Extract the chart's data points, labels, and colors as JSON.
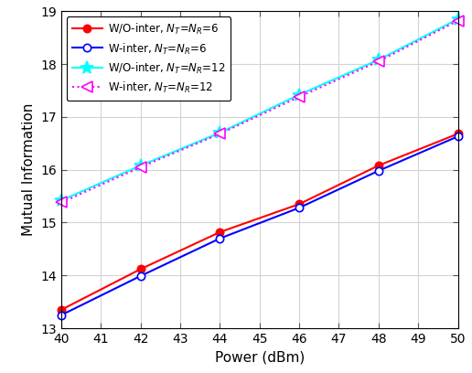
{
  "x": [
    40,
    42,
    44,
    46,
    48,
    50
  ],
  "y_wo_inter_6": [
    13.35,
    14.12,
    14.82,
    15.35,
    16.08,
    16.68
  ],
  "y_w_inter_6": [
    13.25,
    13.99,
    14.7,
    15.28,
    15.98,
    16.63
  ],
  "y_wo_inter_12": [
    15.42,
    16.08,
    16.7,
    17.42,
    18.08,
    18.85
  ],
  "y_w_inter_12": [
    15.38,
    16.05,
    16.68,
    17.38,
    18.05,
    18.82
  ],
  "xlabel": "Power (dBm)",
  "ylabel": "Mutual Information",
  "xlim": [
    40,
    50
  ],
  "ylim": [
    13,
    19
  ],
  "xticks": [
    40,
    41,
    42,
    43,
    44,
    45,
    46,
    47,
    48,
    49,
    50
  ],
  "yticks": [
    13,
    14,
    15,
    16,
    17,
    18,
    19
  ],
  "colors": [
    "#ff0000",
    "#0000ff",
    "#00ffff",
    "#ff00ff"
  ],
  "line_styles": [
    "-",
    "-",
    "-",
    ":"
  ],
  "markers": [
    "o",
    "o",
    "*",
    "<"
  ],
  "marker_sizes": [
    6,
    6,
    10,
    8
  ],
  "marker_facecolors": [
    "#ff0000",
    "white",
    "#00ffff",
    "white"
  ],
  "marker_edgecolors": [
    "#ff0000",
    "#0000ff",
    "#00ffff",
    "#ff00ff"
  ],
  "linewidths": [
    1.5,
    1.5,
    1.5,
    1.5
  ],
  "grid_color": "#d3d3d3",
  "fig_bg": "#ffffff",
  "axes_bg": "#ffffff"
}
